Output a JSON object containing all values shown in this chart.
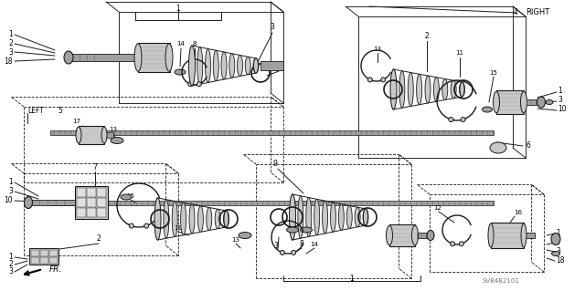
{
  "bg_color": "#ffffff",
  "line_color": "#1a1a1a",
  "gray_light": "#c8c8c8",
  "gray_mid": "#a0a0a0",
  "gray_dark": "#606060",
  "fig_width": 6.4,
  "fig_height": 3.19,
  "dpi": 100,
  "watermark": "SVB4B2101",
  "label_LEFT": "LEFT",
  "label_RIGHT": "RIGHT",
  "label_FR": "FR."
}
